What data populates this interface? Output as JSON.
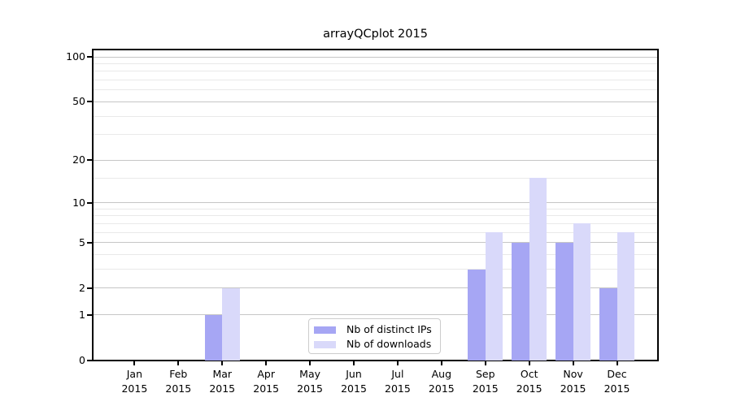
{
  "chart_data": {
    "type": "bar",
    "title": "arrayQCplot 2015",
    "categories": [
      "Jan",
      "Feb",
      "Mar",
      "Apr",
      "May",
      "Jun",
      "Jul",
      "Aug",
      "Sep",
      "Oct",
      "Nov",
      "Dec"
    ],
    "category_year": "2015",
    "series": [
      {
        "name": "Nb of distinct IPs",
        "color": "#a6a6f4",
        "values": [
          0,
          0,
          1,
          0,
          0,
          0,
          0,
          0,
          3,
          5,
          5,
          2
        ]
      },
      {
        "name": "Nb of downloads",
        "color": "#d9d9fa",
        "values": [
          0,
          0,
          2,
          0,
          0,
          0,
          0,
          0,
          6,
          15,
          7,
          6
        ]
      }
    ],
    "y_axis": {
      "scale": "log10(1+x)",
      "tick_values": [
        0,
        1,
        2,
        5,
        10,
        20,
        50,
        100
      ],
      "tick_labels": [
        "0",
        "1",
        "2",
        "5",
        "10",
        "20",
        "50",
        "100"
      ],
      "minor_gridline_values": [
        3,
        4,
        6,
        7,
        8,
        9,
        15,
        30,
        40,
        60,
        70,
        80,
        90
      ],
      "max": 100
    },
    "grid": "horizontal major+minor, no vertical",
    "legend": {
      "position": "lower center inside plot"
    }
  },
  "colors": {
    "background": "#ffffff",
    "axis": "#000000",
    "grid_major": "#c6c6c6",
    "grid_minor": "#e9e9e9",
    "legend_border": "#cccccc",
    "text": "#000000"
  }
}
